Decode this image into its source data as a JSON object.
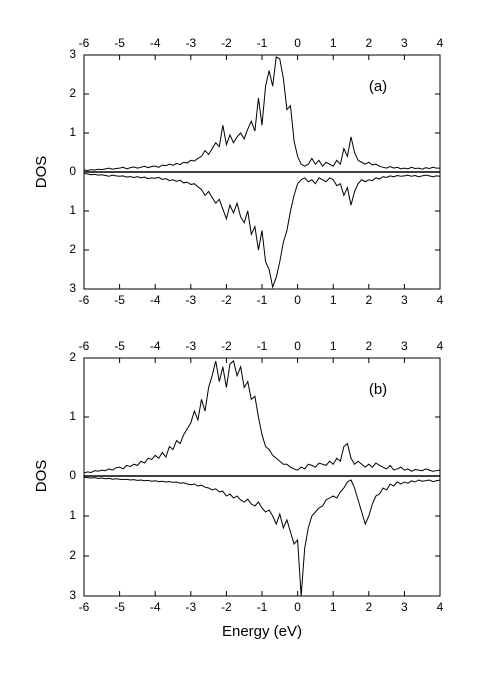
{
  "chart_data": [
    {
      "type": "line",
      "label": "(a)",
      "y_label": "DOS",
      "xlim": [
        -6,
        4
      ],
      "xticks": [
        -6,
        -5,
        -4,
        -3,
        -2,
        -1,
        0,
        1,
        2,
        3,
        4
      ],
      "x": [
        -6,
        -5.9,
        -5.8,
        -5.7,
        -5.6,
        -5.5,
        -5.4,
        -5.3,
        -5.2,
        -5.1,
        -5,
        -4.9,
        -4.8,
        -4.7,
        -4.6,
        -4.5,
        -4.4,
        -4.3,
        -4.2,
        -4.1,
        -4,
        -3.9,
        -3.8,
        -3.7,
        -3.6,
        -3.5,
        -3.4,
        -3.3,
        -3.2,
        -3.1,
        -3,
        -2.9,
        -2.8,
        -2.7,
        -2.6,
        -2.5,
        -2.4,
        -2.3,
        -2.2,
        -2.1,
        -2,
        -1.9,
        -1.8,
        -1.7,
        -1.6,
        -1.5,
        -1.4,
        -1.3,
        -1.2,
        -1.1,
        -1,
        -0.9,
        -0.8,
        -0.7,
        -0.6,
        -0.5,
        -0.4,
        -0.3,
        -0.2,
        -0.1,
        0,
        0.1,
        0.2,
        0.3,
        0.4,
        0.5,
        0.6,
        0.7,
        0.8,
        0.9,
        1,
        1.1,
        1.2,
        1.3,
        1.4,
        1.5,
        1.6,
        1.7,
        1.8,
        1.9,
        2,
        2.1,
        2.2,
        2.3,
        2.4,
        2.5,
        2.6,
        2.7,
        2.8,
        2.9,
        3,
        3.1,
        3.2,
        3.3,
        3.4,
        3.5,
        3.6,
        3.7,
        3.8,
        3.9,
        4
      ],
      "series": [
        {
          "color": "#000000",
          "direction": "up",
          "ylim": [
            0,
            3
          ],
          "yticks": [
            0,
            1,
            2,
            3
          ],
          "values": [
            0.05,
            0.04,
            0.06,
            0.05,
            0.07,
            0.06,
            0.08,
            0.1,
            0.07,
            0.09,
            0.1,
            0.12,
            0.08,
            0.11,
            0.13,
            0.1,
            0.12,
            0.15,
            0.11,
            0.14,
            0.15,
            0.12,
            0.18,
            0.16,
            0.2,
            0.17,
            0.22,
            0.19,
            0.25,
            0.23,
            0.3,
            0.28,
            0.35,
            0.4,
            0.55,
            0.45,
            0.6,
            0.75,
            0.65,
            1.2,
            0.7,
            0.95,
            0.75,
            0.9,
            1.0,
            0.85,
            1.1,
            1.3,
            1.05,
            1.9,
            1.2,
            2.2,
            2.6,
            2.2,
            2.95,
            2.9,
            2.4,
            1.6,
            1.7,
            0.8,
            0.4,
            0.2,
            0.15,
            0.2,
            0.35,
            0.2,
            0.3,
            0.15,
            0.25,
            0.2,
            0.15,
            0.3,
            0.2,
            0.6,
            0.4,
            0.9,
            0.5,
            0.3,
            0.25,
            0.2,
            0.25,
            0.18,
            0.2,
            0.15,
            0.12,
            0.1,
            0.14,
            0.1,
            0.12,
            0.08,
            0.1,
            0.08,
            0.12,
            0.09,
            0.1,
            0.07,
            0.11,
            0.09,
            0.12,
            0.1,
            0.1
          ]
        },
        {
          "color": "#000000",
          "direction": "down",
          "ylim": [
            0,
            3
          ],
          "yticks": [
            1,
            2,
            3
          ],
          "values": [
            0.04,
            0.05,
            0.07,
            0.06,
            0.08,
            0.07,
            0.09,
            0.11,
            0.08,
            0.1,
            0.11,
            0.1,
            0.13,
            0.12,
            0.14,
            0.12,
            0.15,
            0.13,
            0.17,
            0.15,
            0.16,
            0.14,
            0.19,
            0.17,
            0.22,
            0.2,
            0.24,
            0.21,
            0.28,
            0.26,
            0.32,
            0.3,
            0.38,
            0.45,
            0.6,
            0.5,
            0.65,
            0.8,
            0.7,
            0.95,
            1.2,
            0.85,
            1.05,
            0.8,
            1.15,
            1.3,
            1.0,
            1.6,
            1.4,
            2.0,
            1.5,
            2.3,
            2.5,
            2.95,
            2.7,
            2.3,
            1.8,
            1.5,
            1.0,
            0.6,
            0.3,
            0.2,
            0.15,
            0.25,
            0.2,
            0.3,
            0.15,
            0.2,
            0.25,
            0.15,
            0.2,
            0.35,
            0.3,
            0.6,
            0.4,
            0.85,
            0.5,
            0.3,
            0.2,
            0.25,
            0.2,
            0.22,
            0.15,
            0.18,
            0.12,
            0.14,
            0.1,
            0.12,
            0.09,
            0.11,
            0.1,
            0.08,
            0.11,
            0.09,
            0.12,
            0.1,
            0.08,
            0.1,
            0.12,
            0.1,
            0.11
          ]
        }
      ]
    },
    {
      "type": "line",
      "label": "(b)",
      "y_label": "DOS",
      "x_label": "Energy (eV)",
      "xlim": [
        -6,
        4
      ],
      "xticks": [
        -6,
        -5,
        -4,
        -3,
        -2,
        -1,
        0,
        1,
        2,
        3,
        4
      ],
      "x": [
        -6,
        -5.9,
        -5.8,
        -5.7,
        -5.6,
        -5.5,
        -5.4,
        -5.3,
        -5.2,
        -5.1,
        -5,
        -4.9,
        -4.8,
        -4.7,
        -4.6,
        -4.5,
        -4.4,
        -4.3,
        -4.2,
        -4.1,
        -4,
        -3.9,
        -3.8,
        -3.7,
        -3.6,
        -3.5,
        -3.4,
        -3.3,
        -3.2,
        -3.1,
        -3,
        -2.9,
        -2.8,
        -2.7,
        -2.6,
        -2.5,
        -2.4,
        -2.3,
        -2.2,
        -2.1,
        -2,
        -1.9,
        -1.8,
        -1.7,
        -1.6,
        -1.5,
        -1.4,
        -1.3,
        -1.2,
        -1.1,
        -1,
        -0.9,
        -0.8,
        -0.7,
        -0.6,
        -0.5,
        -0.4,
        -0.3,
        -0.2,
        -0.1,
        0,
        0.1,
        0.2,
        0.3,
        0.4,
        0.5,
        0.6,
        0.7,
        0.8,
        0.9,
        1,
        1.1,
        1.2,
        1.3,
        1.4,
        1.5,
        1.6,
        1.7,
        1.8,
        1.9,
        2,
        2.1,
        2.2,
        2.3,
        2.4,
        2.5,
        2.6,
        2.7,
        2.8,
        2.9,
        3,
        3.1,
        3.2,
        3.3,
        3.4,
        3.5,
        3.6,
        3.7,
        3.8,
        3.9,
        4
      ],
      "series": [
        {
          "color": "#000000",
          "direction": "up",
          "ylim": [
            0,
            2
          ],
          "yticks": [
            0,
            1,
            2
          ],
          "values": [
            0.05,
            0.07,
            0.06,
            0.09,
            0.08,
            0.1,
            0.09,
            0.12,
            0.1,
            0.14,
            0.15,
            0.12,
            0.18,
            0.16,
            0.2,
            0.18,
            0.25,
            0.22,
            0.3,
            0.28,
            0.35,
            0.3,
            0.4,
            0.32,
            0.5,
            0.45,
            0.6,
            0.55,
            0.7,
            0.8,
            0.9,
            1.1,
            0.95,
            1.3,
            1.1,
            1.5,
            1.7,
            1.95,
            1.6,
            1.85,
            1.5,
            1.9,
            1.95,
            1.7,
            1.85,
            1.5,
            1.6,
            1.3,
            1.35,
            1.0,
            0.7,
            0.5,
            0.45,
            0.35,
            0.3,
            0.25,
            0.2,
            0.2,
            0.15,
            0.12,
            0.1,
            0.15,
            0.12,
            0.2,
            0.18,
            0.15,
            0.22,
            0.2,
            0.18,
            0.25,
            0.2,
            0.3,
            0.25,
            0.5,
            0.55,
            0.3,
            0.2,
            0.25,
            0.2,
            0.15,
            0.2,
            0.15,
            0.22,
            0.18,
            0.15,
            0.12,
            0.18,
            0.1,
            0.12,
            0.15,
            0.1,
            0.12,
            0.08,
            0.11,
            0.1,
            0.09,
            0.12,
            0.1,
            0.08,
            0.09,
            0.1
          ]
        },
        {
          "color": "#000000",
          "direction": "down",
          "ylim": [
            0,
            3
          ],
          "yticks": [
            1,
            2,
            3
          ],
          "values": [
            0.03,
            0.04,
            0.05,
            0.04,
            0.06,
            0.05,
            0.07,
            0.06,
            0.08,
            0.07,
            0.08,
            0.09,
            0.08,
            0.1,
            0.09,
            0.11,
            0.1,
            0.12,
            0.11,
            0.13,
            0.12,
            0.14,
            0.13,
            0.15,
            0.14,
            0.16,
            0.15,
            0.18,
            0.17,
            0.2,
            0.22,
            0.2,
            0.25,
            0.23,
            0.28,
            0.3,
            0.35,
            0.32,
            0.4,
            0.38,
            0.5,
            0.45,
            0.55,
            0.5,
            0.6,
            0.65,
            0.58,
            0.7,
            0.75,
            0.65,
            0.8,
            0.9,
            0.85,
            1.0,
            1.2,
            0.95,
            1.3,
            1.1,
            1.4,
            1.7,
            1.6,
            3.0,
            1.8,
            1.3,
            1.0,
            0.9,
            0.8,
            0.75,
            0.6,
            0.55,
            0.5,
            0.55,
            0.4,
            0.3,
            0.15,
            0.1,
            0.3,
            0.6,
            0.9,
            1.2,
            1.0,
            0.7,
            0.5,
            0.45,
            0.3,
            0.35,
            0.2,
            0.25,
            0.15,
            0.2,
            0.15,
            0.18,
            0.12,
            0.15,
            0.1,
            0.13,
            0.12,
            0.1,
            0.14,
            0.12,
            0.1
          ]
        }
      ]
    }
  ]
}
